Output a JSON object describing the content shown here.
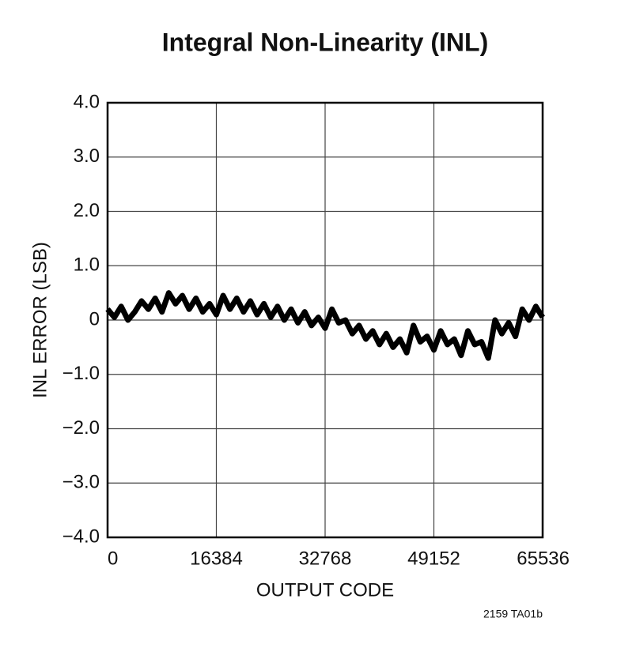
{
  "chart_data": {
    "type": "line",
    "title": "Integral Non-Linearity (INL)",
    "x_label": "OUTPUT CODE",
    "y_label": "INL ERROR (LSB)",
    "annotation": "2159 TA01b",
    "grid": true,
    "xlim": [
      0,
      65536
    ],
    "xticks": [
      0,
      16384,
      32768,
      49152,
      65536
    ],
    "ylim": [
      -4,
      4
    ],
    "yticks": [
      {
        "value": -4,
        "label": "−4.0"
      },
      {
        "value": -3,
        "label": "−3.0"
      },
      {
        "value": -2,
        "label": "−2.0"
      },
      {
        "value": -1,
        "label": "−1.0"
      },
      0,
      {
        "value": 1,
        "label": "1.0"
      },
      {
        "value": 2,
        "label": "2.0"
      },
      {
        "value": 3,
        "label": "3.0"
      },
      {
        "value": 4,
        "label": "4.0"
      }
    ],
    "x": [
      0,
      1024,
      2048,
      3072,
      4096,
      5120,
      6144,
      7168,
      8192,
      9216,
      10240,
      11264,
      12288,
      13312,
      14336,
      15360,
      16384,
      17408,
      18432,
      19456,
      20480,
      21504,
      22528,
      23552,
      24576,
      25600,
      26624,
      27648,
      28672,
      29696,
      30720,
      31744,
      32768,
      33792,
      34816,
      35840,
      36864,
      37888,
      38912,
      39936,
      40960,
      41984,
      43008,
      44032,
      45056,
      46080,
      47104,
      48128,
      49152,
      50176,
      51200,
      52224,
      53248,
      54272,
      55296,
      56320,
      57344,
      58368,
      59392,
      60416,
      61440,
      62464,
      63488,
      64512,
      65535
    ],
    "series": [
      {
        "color": "#000000",
        "values": [
          0.2,
          0.05,
          0.25,
          0.0,
          0.15,
          0.35,
          0.2,
          0.4,
          0.15,
          0.5,
          0.3,
          0.45,
          0.2,
          0.4,
          0.15,
          0.3,
          0.1,
          0.45,
          0.2,
          0.4,
          0.15,
          0.35,
          0.1,
          0.3,
          0.05,
          0.25,
          0.0,
          0.2,
          -0.05,
          0.15,
          -0.1,
          0.05,
          -0.15,
          0.2,
          -0.05,
          0.0,
          -0.25,
          -0.1,
          -0.35,
          -0.2,
          -0.45,
          -0.25,
          -0.5,
          -0.35,
          -0.6,
          -0.1,
          -0.4,
          -0.3,
          -0.55,
          -0.2,
          -0.45,
          -0.35,
          -0.65,
          -0.2,
          -0.45,
          -0.4,
          -0.7,
          0.0,
          -0.25,
          -0.05,
          -0.3,
          0.2,
          0.0,
          0.25,
          0.05
        ]
      }
    ]
  }
}
